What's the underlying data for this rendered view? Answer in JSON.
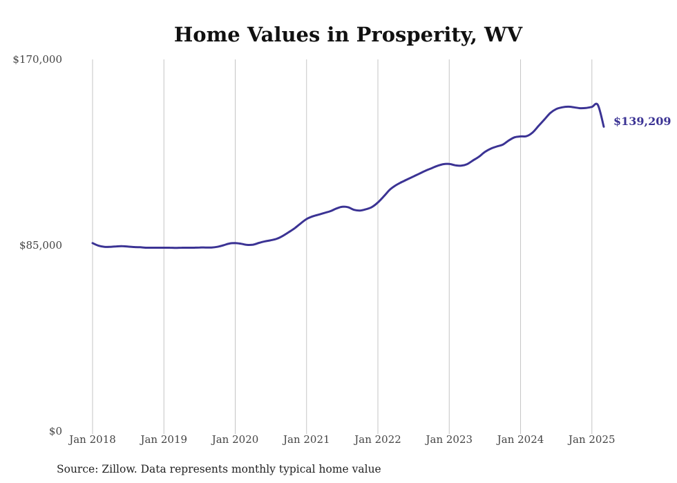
{
  "chart_data": {
    "type": "line",
    "title": "Home Values in Prosperity, WV",
    "xlabel": "",
    "ylabel": "",
    "ylim": [
      0,
      170000
    ],
    "yticks": [
      0,
      85000,
      170000
    ],
    "ytick_labels": [
      "$0",
      "$85,000",
      "$170,000"
    ],
    "xlim": [
      "2018-01",
      "2025-03"
    ],
    "xticks": [
      "2018-01",
      "2019-01",
      "2020-01",
      "2021-01",
      "2022-01",
      "2023-01",
      "2024-01",
      "2025-01"
    ],
    "xtick_labels": [
      "Jan 2018",
      "Jan 2019",
      "Jan 2020",
      "Jan 2021",
      "Jan 2022",
      "Jan 2023",
      "Jan 2024",
      "Jan 2025"
    ],
    "grid": "vertical",
    "line_color": "#3b3394",
    "end_label": "$139,209",
    "source": "Source: Zillow. Data represents monthly typical home value",
    "series": [
      {
        "x": [
          "2018-01",
          "2018-02",
          "2018-03",
          "2018-04",
          "2018-05",
          "2018-06",
          "2018-07",
          "2018-08",
          "2018-09",
          "2018-10",
          "2018-11",
          "2018-12",
          "2019-01",
          "2019-02",
          "2019-03",
          "2019-04",
          "2019-05",
          "2019-06",
          "2019-07",
          "2019-08",
          "2019-09",
          "2019-10",
          "2019-11",
          "2019-12",
          "2020-01",
          "2020-02",
          "2020-03",
          "2020-04",
          "2020-05",
          "2020-06",
          "2020-07",
          "2020-08",
          "2020-09",
          "2020-10",
          "2020-11",
          "2020-12",
          "2021-01",
          "2021-02",
          "2021-03",
          "2021-04",
          "2021-05",
          "2021-06",
          "2021-07",
          "2021-08",
          "2021-09",
          "2021-10",
          "2021-11",
          "2021-12",
          "2022-01",
          "2022-02",
          "2022-03",
          "2022-04",
          "2022-05",
          "2022-06",
          "2022-07",
          "2022-08",
          "2022-09",
          "2022-10",
          "2022-11",
          "2022-12",
          "2023-01",
          "2023-02",
          "2023-03",
          "2023-04",
          "2023-05",
          "2023-06",
          "2023-07",
          "2023-08",
          "2023-09",
          "2023-10",
          "2023-11",
          "2023-12",
          "2024-01",
          "2024-02",
          "2024-03",
          "2024-04",
          "2024-05",
          "2024-06",
          "2024-07",
          "2024-08",
          "2024-09",
          "2024-10",
          "2024-11",
          "2024-12",
          "2025-01",
          "2025-02",
          "2025-03"
        ],
        "values": [
          86000,
          84800,
          84300,
          84300,
          84500,
          84600,
          84400,
          84200,
          84100,
          83900,
          83900,
          83900,
          83900,
          83900,
          83800,
          83900,
          83900,
          83900,
          84000,
          84000,
          84000,
          84300,
          85000,
          85800,
          86000,
          85700,
          85200,
          85300,
          86100,
          86800,
          87300,
          88000,
          89300,
          91000,
          92800,
          95000,
          97000,
          98200,
          99000,
          99800,
          100600,
          101800,
          102600,
          102400,
          101200,
          100900,
          101500,
          102500,
          104600,
          107400,
          110400,
          112400,
          113900,
          115200,
          116500,
          117800,
          119100,
          120200,
          121300,
          122100,
          122200,
          121600,
          121400,
          122100,
          123800,
          125500,
          127700,
          129200,
          130200,
          131000,
          132900,
          134400,
          134800,
          134900,
          136500,
          139500,
          142500,
          145500,
          147300,
          148100,
          148400,
          148100,
          147700,
          147800,
          148300,
          149200,
          139209
        ]
      }
    ]
  }
}
